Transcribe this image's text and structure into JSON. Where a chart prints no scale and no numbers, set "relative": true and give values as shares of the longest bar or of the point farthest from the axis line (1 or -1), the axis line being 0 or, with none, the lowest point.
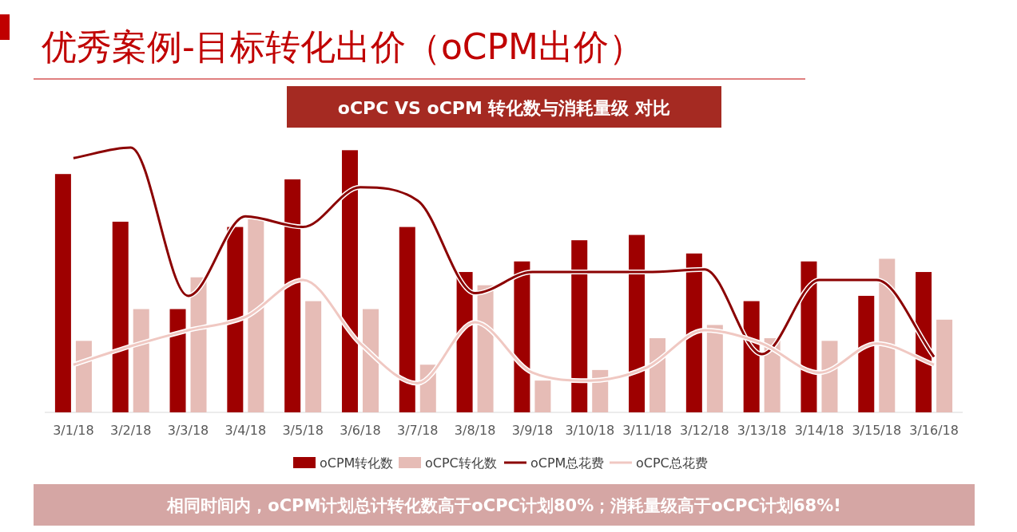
{
  "chart_data": {
    "type": "bar",
    "title": "优秀案例-目标转化出价（oCPM出价）",
    "subtitle": "oCPC VS oCPM 转化数与消耗量级 对比",
    "annotations": [
      "相同时间内，oCPM计划总计转化数高于oCPC计划80%；消耗量级高于oCPC计划68%!"
    ],
    "relative": true,
    "legend": "bottom",
    "categories": [
      "3/1/18",
      "3/2/18",
      "3/3/18",
      "3/4/18",
      "3/5/18",
      "3/6/18",
      "3/7/18",
      "3/8/18",
      "3/9/18",
      "3/10/18",
      "3/11/18",
      "3/12/18",
      "3/13/18",
      "3/14/18",
      "3/15/18",
      "3/16/18"
    ],
    "series": [
      {
        "name": "oCPM转化数",
        "color": "#9e0000",
        "values": [
          0.9,
          0.72,
          0.39,
          0.7,
          0.88,
          0.99,
          0.7,
          0.53,
          0.57,
          0.65,
          0.67,
          0.6,
          0.42,
          0.57,
          0.44,
          0.53
        ]
      },
      {
        "name": "oCPC转化数",
        "color": "#e6bcb6",
        "values": [
          0.27,
          0.39,
          0.51,
          0.73,
          0.42,
          0.39,
          0.18,
          0.48,
          0.12,
          0.16,
          0.28,
          0.33,
          0.28,
          0.27,
          0.58,
          0.35
        ]
      },
      {
        "name": "oCPM总花费",
        "type": "line",
        "color": "#8b0000",
        "values": [
          0.96,
          1.0,
          0.44,
          0.74,
          0.7,
          0.85,
          0.8,
          0.45,
          0.53,
          0.53,
          0.53,
          0.54,
          0.22,
          0.5,
          0.5,
          0.21
        ]
      },
      {
        "name": "oCPC总花费",
        "type": "line",
        "color": "#f0c8c2",
        "values": [
          0.18,
          0.25,
          0.31,
          0.36,
          0.5,
          0.26,
          0.11,
          0.34,
          0.15,
          0.12,
          0.17,
          0.31,
          0.26,
          0.15,
          0.26,
          0.18
        ]
      }
    ]
  }
}
